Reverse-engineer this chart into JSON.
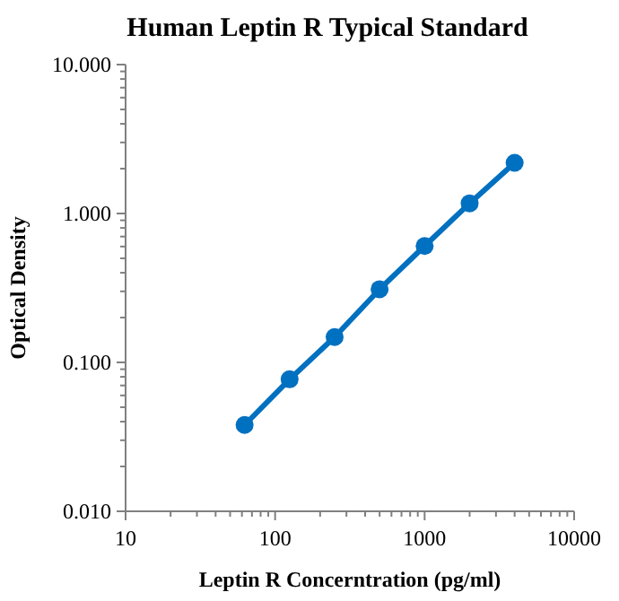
{
  "chart_data": {
    "type": "scatter",
    "title": "Human Leptin R Typical Standard",
    "xlabel": "Leptin R Concerntration (pg/ml)",
    "ylabel": "Optical Density",
    "log": "xy",
    "grid": false,
    "marker": "circle",
    "x": [
      62.5,
      125,
      250,
      500,
      1000,
      2000,
      4000
    ],
    "series": [
      {
        "type": "line",
        "color": "#0070c0",
        "x": [
          62.5,
          125,
          250,
          500,
          1000,
          2000,
          4000
        ],
        "values": [
          0.038,
          0.077,
          0.148,
          0.31,
          0.605,
          1.17,
          2.19
        ],
        "marker": "none",
        "line_style": "solid"
      },
      {
        "color": "#0070c0",
        "values": [
          0.038,
          0.077,
          0.148,
          0.31,
          0.605,
          1.17,
          2.19
        ]
      }
    ],
    "xlim": [
      10,
      10000
    ],
    "xticks": [
      10,
      100,
      1000,
      10000
    ],
    "ylim": [
      0.01,
      10
    ],
    "yticks": [
      {
        "value": 0.01,
        "label": "0.010"
      },
      {
        "value": 0.1,
        "label": "0.100"
      },
      {
        "value": 1,
        "label": "1.000"
      },
      {
        "value": 10,
        "label": "10.000"
      }
    ]
  }
}
